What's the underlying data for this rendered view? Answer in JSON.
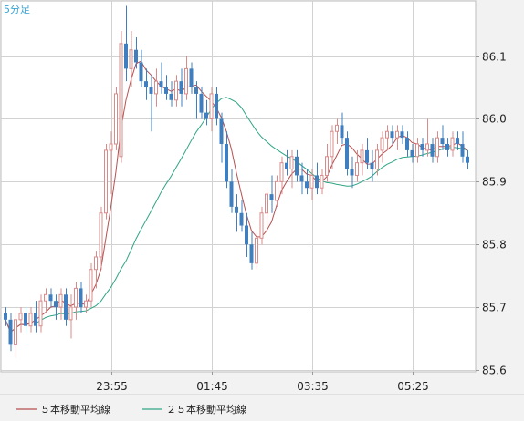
{
  "chart_data": {
    "type": "candlestick",
    "timeframe_label": "5分足",
    "x_tick_labels": [
      "23:55",
      "01:45",
      "03:35",
      "05:25"
    ],
    "y_tick_values": [
      85.6,
      85.7,
      85.8,
      85.9,
      86.0,
      86.1
    ],
    "y_tick_labels": [
      "85.6",
      "85.7",
      "85.8",
      "85.9",
      "86.0",
      "86.1"
    ],
    "ylim": [
      85.597,
      86.188
    ],
    "grid": true,
    "legend_position": "bottom",
    "colors": {
      "up": "#d88b8b",
      "down": "#3f7fbf",
      "ma5": "#b74f4f",
      "ma25": "#2fa585",
      "grid": "#d2d2d2",
      "timeframe": "#3ba3d0"
    },
    "series": [
      {
        "name": "５本移動平均線",
        "color": "#b74f4f"
      },
      {
        "name": "２５本移動平均線",
        "color": "#2fa585"
      }
    ],
    "candles": [
      [
        85.69,
        85.7,
        85.67,
        85.68
      ],
      [
        85.68,
        85.69,
        85.63,
        85.64
      ],
      [
        85.64,
        85.69,
        85.62,
        85.68
      ],
      [
        85.68,
        85.7,
        85.66,
        85.69
      ],
      [
        85.69,
        85.7,
        85.66,
        85.67
      ],
      [
        85.67,
        85.7,
        85.66,
        85.69
      ],
      [
        85.69,
        85.71,
        85.66,
        85.67
      ],
      [
        85.67,
        85.72,
        85.66,
        85.71
      ],
      [
        85.71,
        85.73,
        85.69,
        85.72
      ],
      [
        85.72,
        85.73,
        85.7,
        85.71
      ],
      [
        85.71,
        85.72,
        85.68,
        85.7
      ],
      [
        85.7,
        85.73,
        85.68,
        85.72
      ],
      [
        85.72,
        85.73,
        85.67,
        85.68
      ],
      [
        85.68,
        85.72,
        85.65,
        85.7
      ],
      [
        85.7,
        85.74,
        85.68,
        85.73
      ],
      [
        85.73,
        85.74,
        85.69,
        85.7
      ],
      [
        85.7,
        85.72,
        85.69,
        85.71
      ],
      [
        85.71,
        85.77,
        85.7,
        85.76
      ],
      [
        85.76,
        85.79,
        85.73,
        85.78
      ],
      [
        85.78,
        85.86,
        85.76,
        85.85
      ],
      [
        85.85,
        85.96,
        85.84,
        85.95
      ],
      [
        85.95,
        85.98,
        85.88,
        85.96
      ],
      [
        85.96,
        86.05,
        85.95,
        86.04
      ],
      [
        85.94,
        86.14,
        85.93,
        86.12
      ],
      [
        86.12,
        86.18,
        86.06,
        86.08
      ],
      [
        86.08,
        86.14,
        86.05,
        86.11
      ],
      [
        86.11,
        86.13,
        86.08,
        86.09
      ],
      [
        86.09,
        86.11,
        86.05,
        86.06
      ],
      [
        86.06,
        86.08,
        86.03,
        86.05
      ],
      [
        86.05,
        86.07,
        85.98,
        86.04
      ],
      [
        86.04,
        86.08,
        86.02,
        86.06
      ],
      [
        86.06,
        86.09,
        86.04,
        86.05
      ],
      [
        86.05,
        86.07,
        86.03,
        86.04
      ],
      [
        86.04,
        86.06,
        86.02,
        86.03
      ],
      [
        86.03,
        86.07,
        86.02,
        86.06
      ],
      [
        86.06,
        86.08,
        86.02,
        86.04
      ],
      [
        86.04,
        86.1,
        86.03,
        86.08
      ],
      [
        86.08,
        86.09,
        86.04,
        86.05
      ],
      [
        86.05,
        86.06,
        86.0,
        86.04
      ],
      [
        86.04,
        86.05,
        86.0,
        86.01
      ],
      [
        86.01,
        86.03,
        85.99,
        86.0
      ],
      [
        86.0,
        86.05,
        85.98,
        86.04
      ],
      [
        86.04,
        86.05,
        85.99,
        86.0
      ],
      [
        86.0,
        86.01,
        85.93,
        85.96
      ],
      [
        85.96,
        85.98,
        85.89,
        85.9
      ],
      [
        85.9,
        85.92,
        85.85,
        85.86
      ],
      [
        85.86,
        85.88,
        85.82,
        85.85
      ],
      [
        85.85,
        85.87,
        85.82,
        85.83
      ],
      [
        85.83,
        85.85,
        85.78,
        85.8
      ],
      [
        85.8,
        85.82,
        85.76,
        85.77
      ],
      [
        85.77,
        85.82,
        85.76,
        85.81
      ],
      [
        85.81,
        85.86,
        85.8,
        85.85
      ],
      [
        85.85,
        85.89,
        85.83,
        85.88
      ],
      [
        85.88,
        85.91,
        85.85,
        85.87
      ],
      [
        85.87,
        85.91,
        85.86,
        85.9
      ],
      [
        85.9,
        85.94,
        85.88,
        85.93
      ],
      [
        85.93,
        85.95,
        85.91,
        85.92
      ],
      [
        85.92,
        85.95,
        85.89,
        85.94
      ],
      [
        85.94,
        85.95,
        85.9,
        85.91
      ],
      [
        85.91,
        85.93,
        85.88,
        85.9
      ],
      [
        85.9,
        85.92,
        85.88,
        85.89
      ],
      [
        85.89,
        85.92,
        85.87,
        85.91
      ],
      [
        85.91,
        85.93,
        85.88,
        85.89
      ],
      [
        85.89,
        85.92,
        85.88,
        85.91
      ],
      [
        85.91,
        85.96,
        85.9,
        85.94
      ],
      [
        85.94,
        85.99,
        85.92,
        85.98
      ],
      [
        85.98,
        86.0,
        85.96,
        85.99
      ],
      [
        85.99,
        86.01,
        85.96,
        85.97
      ],
      [
        85.97,
        85.98,
        85.91,
        85.92
      ],
      [
        85.92,
        85.94,
        85.89,
        85.91
      ],
      [
        85.91,
        85.95,
        85.9,
        85.93
      ],
      [
        85.93,
        85.96,
        85.91,
        85.95
      ],
      [
        85.95,
        85.97,
        85.92,
        85.93
      ],
      [
        85.93,
        85.95,
        85.9,
        85.92
      ],
      [
        85.92,
        85.96,
        85.91,
        85.95
      ],
      [
        85.95,
        85.98,
        85.93,
        85.97
      ],
      [
        85.97,
        85.99,
        85.95,
        85.98
      ],
      [
        85.98,
        85.99,
        85.96,
        85.97
      ],
      [
        85.97,
        85.99,
        85.95,
        85.98
      ],
      [
        85.98,
        85.99,
        85.96,
        85.97
      ],
      [
        85.97,
        85.98,
        85.94,
        85.95
      ],
      [
        85.95,
        85.96,
        85.93,
        85.94
      ],
      [
        85.94,
        85.97,
        85.93,
        85.96
      ],
      [
        85.96,
        85.97,
        85.94,
        85.95
      ],
      [
        85.95,
        86.0,
        85.94,
        85.96
      ],
      [
        85.96,
        85.97,
        85.93,
        85.94
      ],
      [
        85.94,
        85.98,
        85.93,
        85.97
      ],
      [
        85.97,
        85.99,
        85.95,
        85.96
      ],
      [
        85.96,
        85.97,
        85.94,
        85.95
      ],
      [
        85.95,
        85.98,
        85.94,
        85.97
      ],
      [
        85.97,
        85.98,
        85.95,
        85.96
      ],
      [
        85.96,
        85.98,
        85.93,
        85.94
      ],
      [
        85.94,
        85.95,
        85.92,
        85.93
      ]
    ]
  }
}
